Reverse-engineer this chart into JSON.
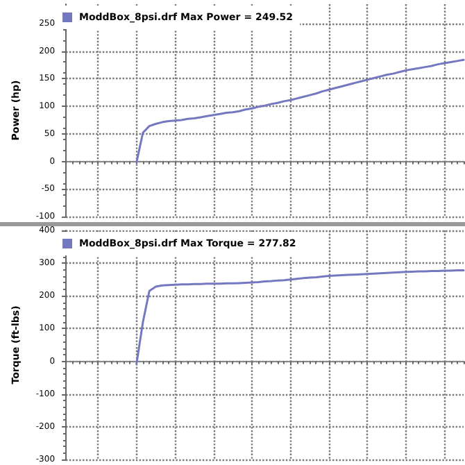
{
  "chart_data": [
    {
      "type": "line",
      "ylabel": "Power (hp)",
      "categories": [
        null,
        null,
        null,
        null,
        null,
        null,
        null,
        null,
        null,
        null,
        null,
        null,
        null,
        null,
        null,
        null,
        null,
        null,
        null,
        null,
        null,
        null,
        null,
        null,
        null,
        null,
        null,
        null,
        null,
        null,
        null,
        null,
        null,
        null,
        null,
        null,
        null,
        null,
        null,
        null,
        null,
        null,
        null,
        null,
        null,
        null,
        null,
        null,
        null,
        null,
        null,
        null,
        null,
        null,
        null,
        null,
        null,
        null,
        null,
        null,
        null,
        null,
        null
      ],
      "series": [
        {
          "name": "ModdBox_8psi.drf Max Power = 249.52",
          "color": "#7478c0",
          "values": [
            null,
            null,
            null,
            null,
            null,
            null,
            null,
            null,
            null,
            null,
            null,
            -2,
            52,
            64,
            68,
            71,
            73,
            74,
            75,
            77,
            78,
            80,
            82,
            84,
            86,
            88,
            89,
            91,
            94,
            96,
            99,
            101,
            104,
            106,
            109,
            111,
            114,
            117,
            120,
            123,
            127,
            130,
            133,
            136,
            139,
            142,
            145,
            148,
            151,
            154,
            157,
            159,
            162,
            165,
            167,
            169,
            171,
            173,
            176,
            178,
            180,
            182,
            184
          ]
        }
      ],
      "ylim": [
        -100,
        285
      ],
      "yticks": [
        -100,
        -50,
        0,
        50,
        100,
        150,
        200,
        250
      ],
      "grid": true,
      "legend": "top left",
      "tick_labels": "y",
      "line_style": "solid"
    },
    {
      "type": "line",
      "ylabel": "Torque (ft-lbs)",
      "categories": [
        null,
        null,
        null,
        null,
        null,
        null,
        null,
        null,
        null,
        null,
        null,
        null,
        null,
        null,
        null,
        null,
        null,
        null,
        null,
        null,
        null,
        null,
        null,
        null,
        null,
        null,
        null,
        null,
        null,
        null,
        null,
        null,
        null,
        null,
        null,
        null,
        null,
        null,
        null,
        null,
        null,
        null,
        null,
        null,
        null,
        null,
        null,
        null,
        null,
        null,
        null,
        null,
        null,
        null,
        null,
        null,
        null,
        null,
        null,
        null,
        null,
        null,
        null
      ],
      "series": [
        {
          "name": "ModdBox_8psi.drf Max Torque = 277.82",
          "color": "#7478c0",
          "values": [
            null,
            null,
            null,
            null,
            null,
            null,
            null,
            null,
            null,
            null,
            null,
            -8,
            120,
            215,
            228,
            232,
            233,
            234,
            235,
            235,
            236,
            236,
            237,
            237,
            237,
            238,
            238,
            239,
            240,
            241,
            242,
            244,
            245,
            247,
            248,
            250,
            252,
            254,
            256,
            257,
            259,
            261,
            262,
            263,
            264,
            265,
            266,
            267,
            268,
            269,
            270,
            271,
            272,
            273,
            274,
            275,
            275,
            276,
            276,
            277,
            277,
            278,
            278
          ]
        }
      ],
      "ylim": [
        -300,
        400
      ],
      "yticks": [
        -300,
        -200,
        -100,
        0,
        100,
        200,
        300,
        400
      ],
      "grid": true,
      "legend": "top left",
      "tick_labels": "y",
      "line_style": "solid"
    }
  ]
}
